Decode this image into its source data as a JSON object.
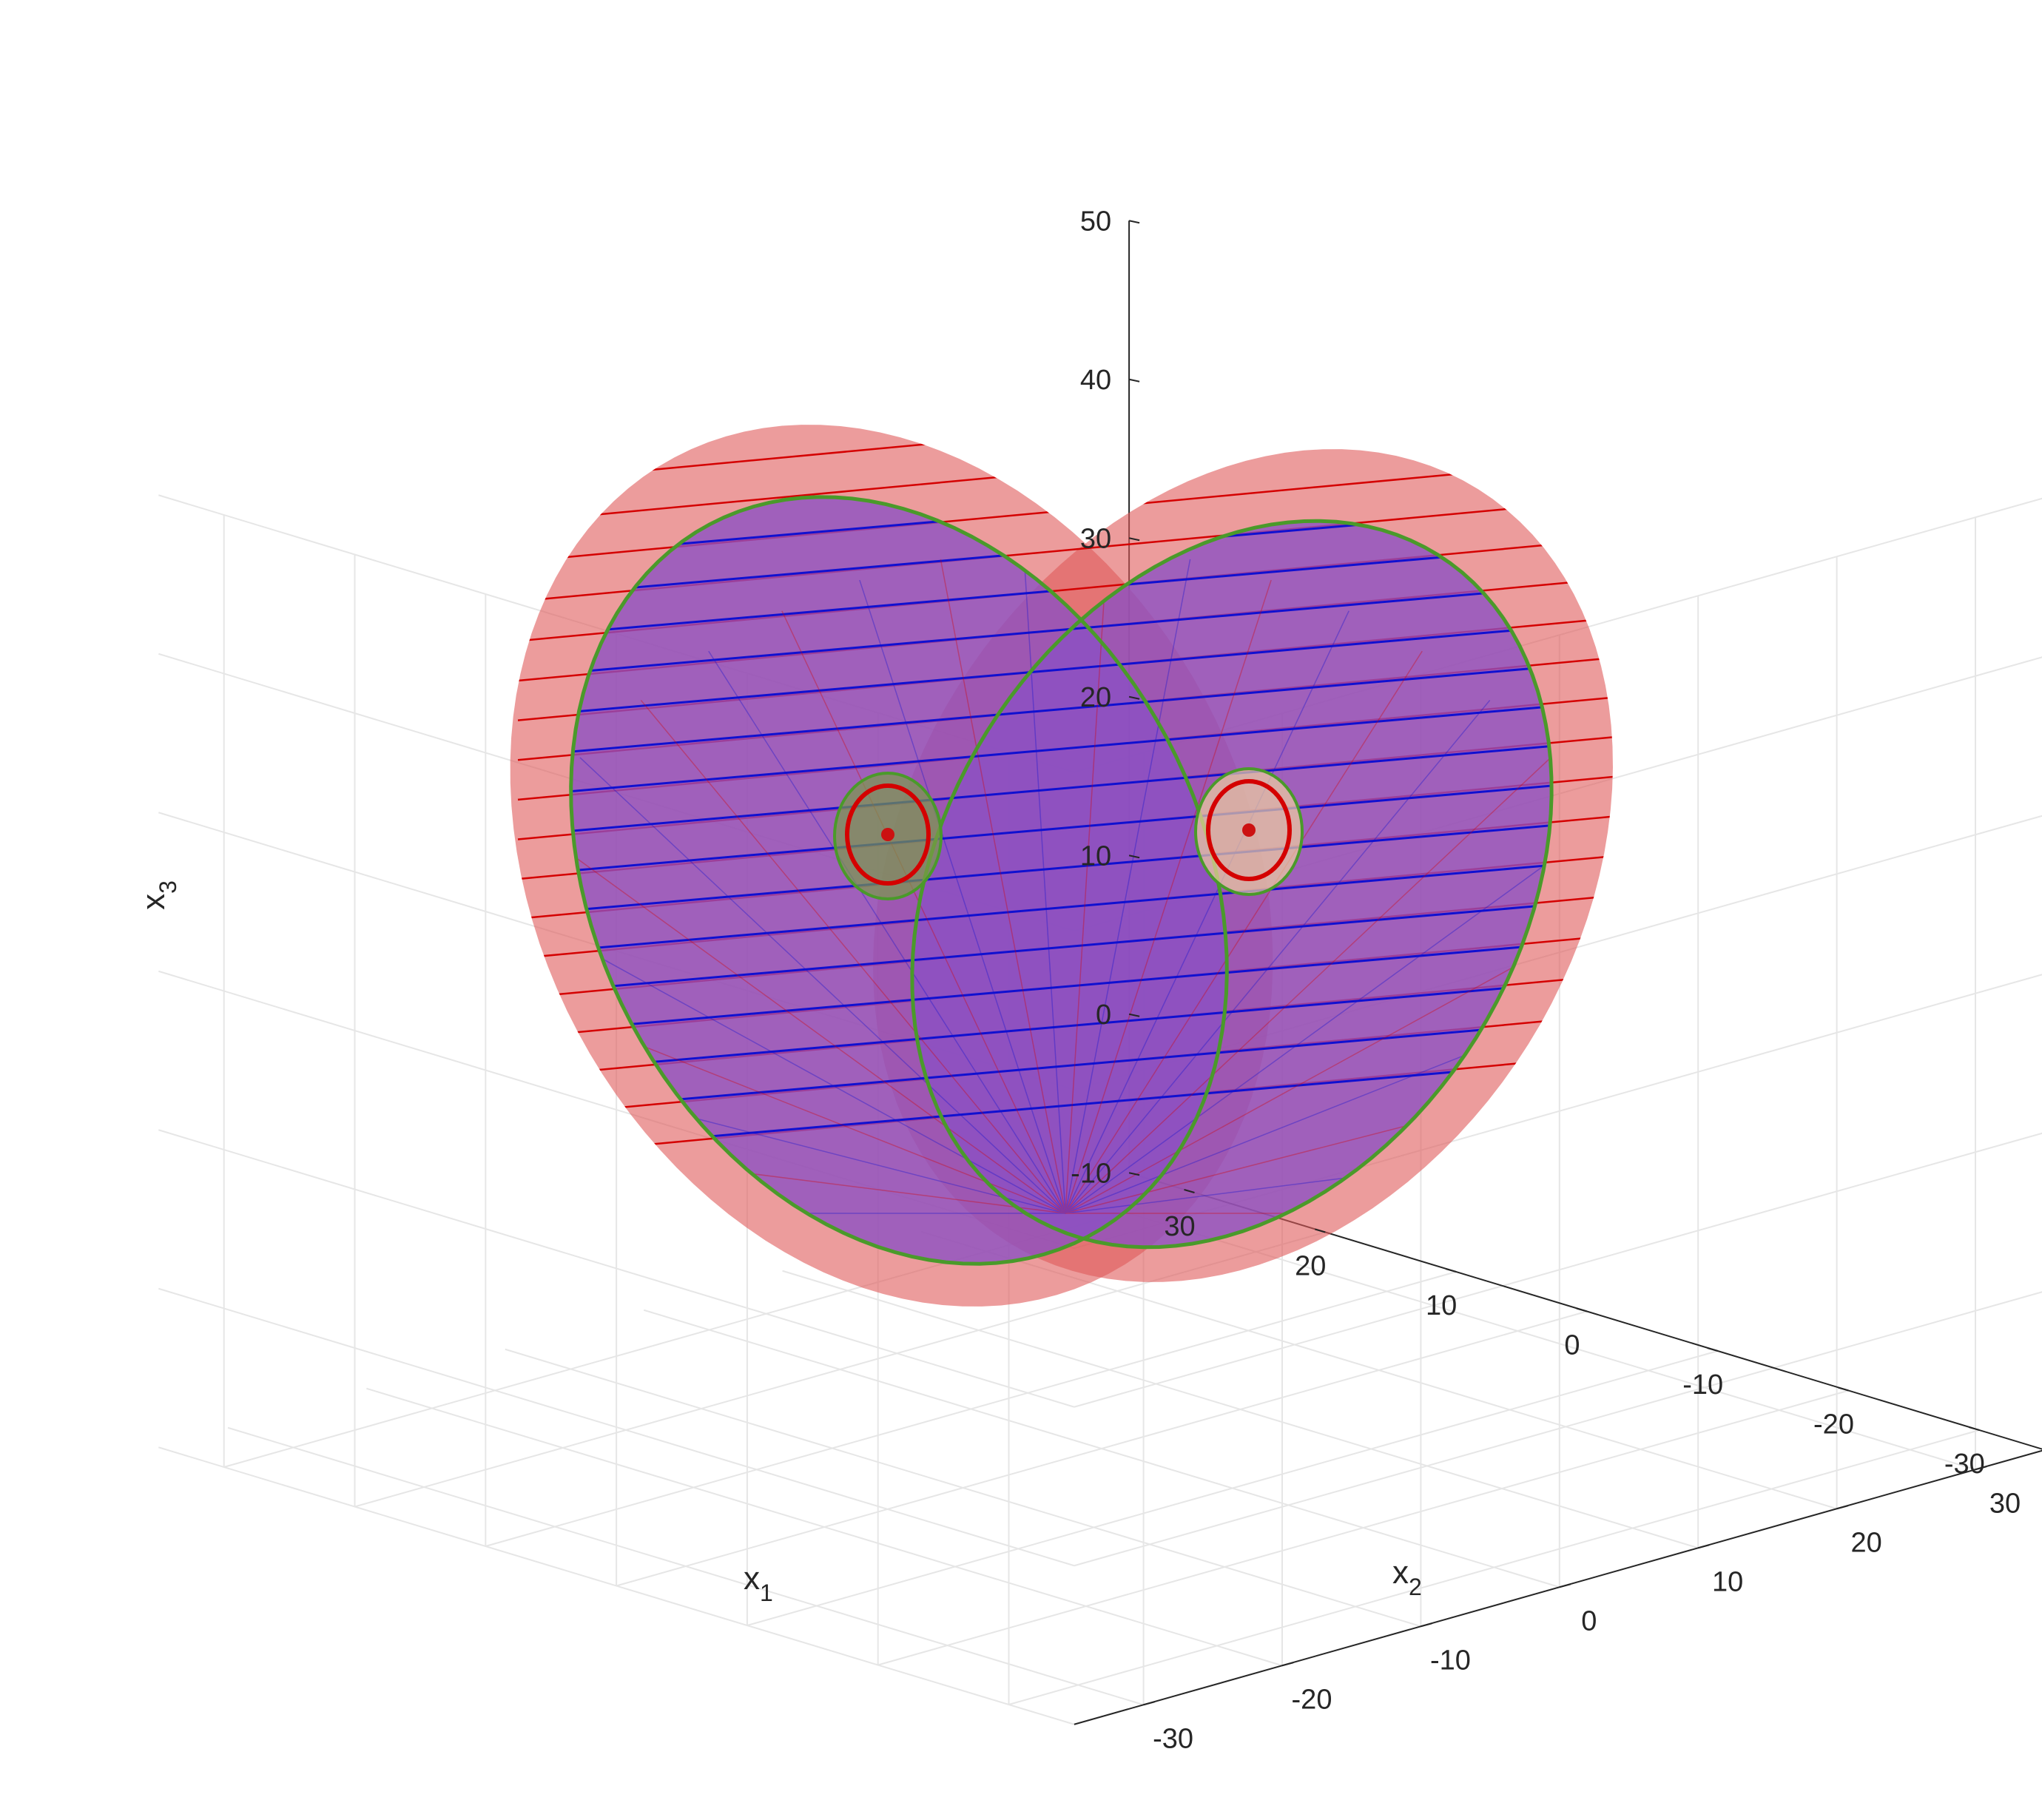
{
  "chart_data": {
    "type": "surface3d",
    "title": "",
    "axes": {
      "x1": {
        "label": "x",
        "subscript": "1",
        "range": [
          -35,
          35
        ],
        "ticks": [
          30,
          20,
          10,
          0,
          -10,
          -20,
          -30
        ]
      },
      "x2": {
        "label": "x",
        "subscript": "2",
        "range": [
          -35,
          35
        ],
        "ticks": [
          30,
          20,
          10,
          0,
          -10,
          -20,
          -30
        ]
      },
      "x3": {
        "label": "x",
        "subscript": "3",
        "range": [
          -10,
          50
        ],
        "ticks": [
          50,
          40,
          30,
          20,
          10,
          0,
          -10
        ]
      }
    },
    "grid": true,
    "box": "back planes with light gray grid",
    "colors": {
      "outer_surface": "#e05a5a",
      "inner_surface": "#8a4fc4",
      "contour_lines_outer": "#d40000",
      "contour_lines_inner": "#1010d0",
      "boundary_curve": "#4a9a2a",
      "equilibrium_orbit": "#d40000",
      "equilibrium_point": "#cc1111"
    },
    "features": {
      "equilibria": [
        {
          "x1": 8.5,
          "x2": 8.5,
          "x3": 27
        },
        {
          "x1": -8.5,
          "x2": -8.5,
          "x3": 27
        }
      ],
      "horizontal_contour_levels": [
        0,
        2.5,
        5,
        7.5,
        10,
        12.5,
        15,
        17.5,
        20,
        22.5,
        25,
        27.5,
        30,
        32.5,
        35,
        37.5,
        40,
        42.5
      ]
    }
  }
}
